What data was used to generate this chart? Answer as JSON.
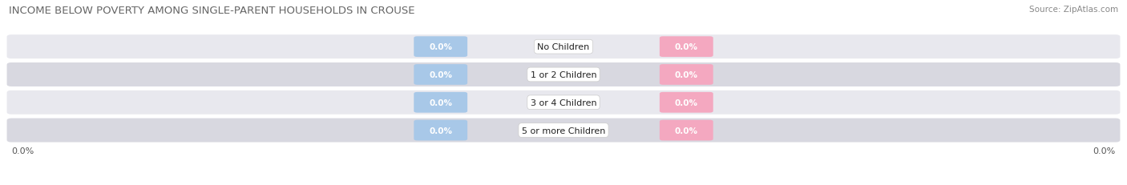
{
  "title": "INCOME BELOW POVERTY AMONG SINGLE-PARENT HOUSEHOLDS IN CROUSE",
  "source": "Source: ZipAtlas.com",
  "categories": [
    "No Children",
    "1 or 2 Children",
    "3 or 4 Children",
    "5 or more Children"
  ],
  "single_father_values": [
    0.0,
    0.0,
    0.0,
    0.0
  ],
  "single_mother_values": [
    0.0,
    0.0,
    0.0,
    0.0
  ],
  "father_color": "#a8c8e8",
  "mother_color": "#f4a8c0",
  "bar_bg_color": "#e8e8ee",
  "bar_bg_color2": "#d8d8e0",
  "title_fontsize": 9.5,
  "label_fontsize": 8,
  "value_fontsize": 7.5,
  "tick_fontsize": 8,
  "source_fontsize": 7.5,
  "axis_label_left": "0.0%",
  "axis_label_right": "0.0%",
  "background_color": "#ffffff"
}
